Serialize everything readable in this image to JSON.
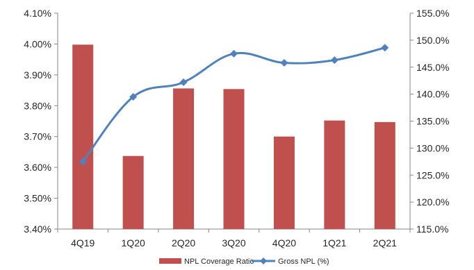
{
  "chart_data": {
    "type": "bar",
    "categories": [
      "4Q19",
      "1Q20",
      "2Q20",
      "3Q20",
      "4Q20",
      "1Q21",
      "2Q21"
    ],
    "series": [
      {
        "name": "NPL Coverage Ratio",
        "type": "bar",
        "axis": "left",
        "color": "#c0504d",
        "values": [
          3.998,
          3.637,
          3.856,
          3.854,
          3.7,
          3.752,
          3.747
        ]
      },
      {
        "name": "Gross NPL (%)",
        "type": "line",
        "axis": "right",
        "color": "#4f81bd",
        "values": [
          127.5,
          139.5,
          142.2,
          147.5,
          145.8,
          146.3,
          148.6
        ]
      }
    ],
    "y_left": {
      "lim": [
        3.4,
        4.1
      ],
      "ticks": [
        3.4,
        3.5,
        3.6,
        3.7,
        3.8,
        3.9,
        4.0,
        4.1
      ],
      "tick_labels": [
        "3.40%",
        "3.50%",
        "3.60%",
        "3.70%",
        "3.80%",
        "3.90%",
        "4.00%",
        "4.10%"
      ]
    },
    "y_right": {
      "lim": [
        115.0,
        155.0
      ],
      "ticks": [
        115,
        120,
        125,
        130,
        135,
        140,
        145,
        150,
        155
      ],
      "tick_labels": [
        "115.0%",
        "120.0%",
        "125.0%",
        "130.0%",
        "135.0%",
        "140.0%",
        "145.0%",
        "150.0%",
        "155.0%"
      ]
    },
    "grid": false,
    "legend": {
      "position": "bottom",
      "entries": [
        "NPL Coverage Ratio",
        "Gross NPL (%)"
      ]
    }
  }
}
